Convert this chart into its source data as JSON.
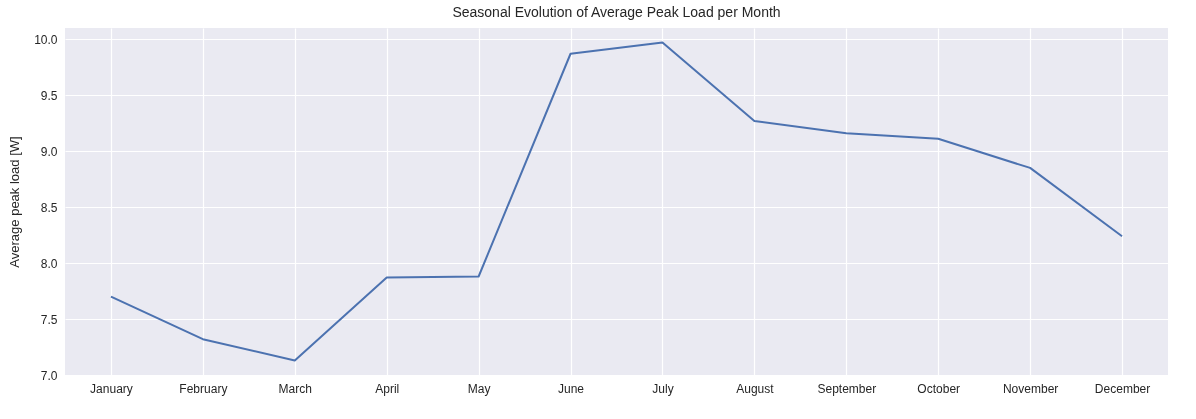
{
  "chart_data": {
    "type": "line",
    "title": "Seasonal Evolution of Average Peak Load per Month",
    "ylabel": "Average peak load [W]",
    "categories": [
      "January",
      "February",
      "March",
      "April",
      "May",
      "June",
      "July",
      "August",
      "September",
      "October",
      "November",
      "December"
    ],
    "series": [
      {
        "color": "#4c72b0",
        "values": [
          7.7,
          7.32,
          7.13,
          7.87,
          7.88,
          9.87,
          9.97,
          9.27,
          9.16,
          9.11,
          8.85,
          8.24
        ]
      }
    ],
    "ylim": [
      7.0,
      10.1
    ],
    "yticks": [
      {
        "value": 7,
        "label": "7.0"
      },
      {
        "value": 7.5,
        "label": "7.5"
      },
      {
        "value": 8,
        "label": "8.0"
      },
      {
        "value": 8.5,
        "label": "8.5"
      },
      {
        "value": 9,
        "label": "9.0"
      },
      {
        "value": 9.5,
        "label": "9.5"
      },
      {
        "value": 10,
        "label": "10.0"
      }
    ],
    "grid": true,
    "marker": "none",
    "line_style": "solid"
  }
}
